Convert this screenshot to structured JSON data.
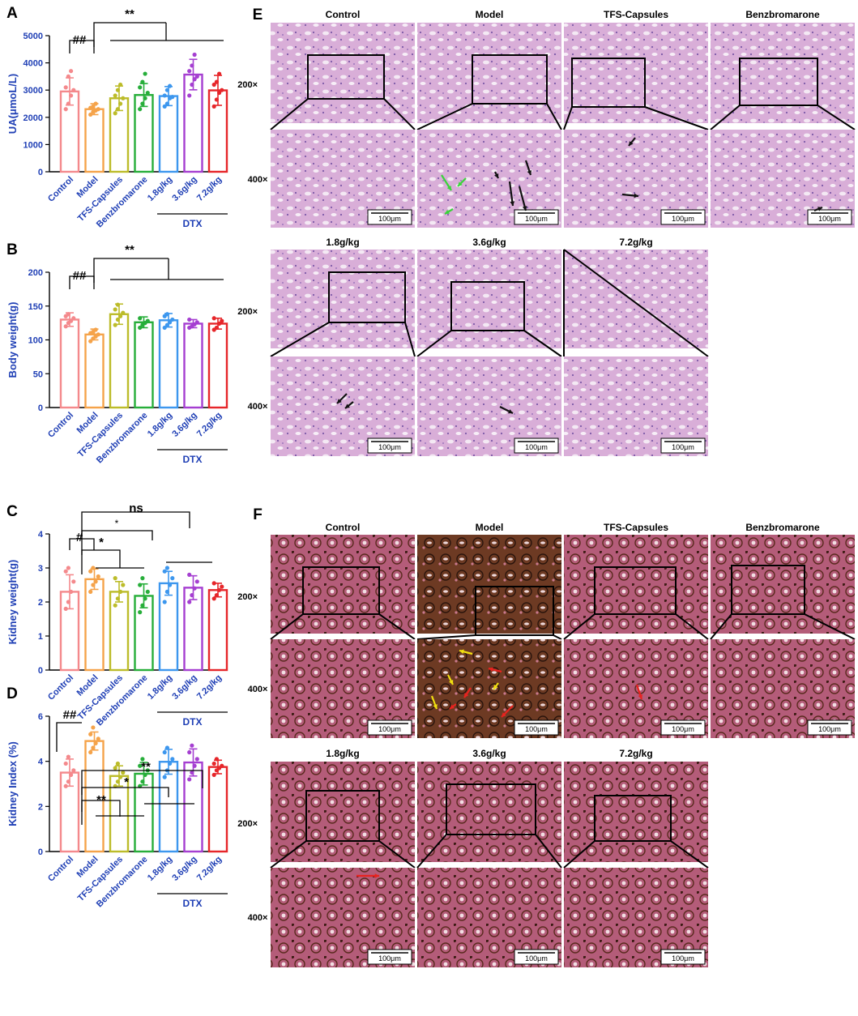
{
  "colors": {
    "groups": [
      "#f4898c",
      "#f5a34a",
      "#bcbc2a",
      "#27ae3a",
      "#3d97ee",
      "#a53fd1",
      "#e6262a"
    ],
    "axis_text": "#1f3fb5",
    "tissue_he": "#d7a8d6",
    "tissue_pasm": "#b25a78",
    "tissue_pasm_dark": "#6a3a22",
    "arrow_black": "#111111",
    "arrow_green": "#3ad43a",
    "arrow_yellow": "#f2e010",
    "arrow_red": "#e8231f"
  },
  "groups": [
    "Control",
    "Model",
    "TFS-Capsules",
    "Benzbromarone",
    "1.8g/kg",
    "3.6g/kg",
    "7.2g/kg"
  ],
  "dtx_label": "DTX",
  "chart_data": [
    {
      "panel": "A",
      "type": "bar",
      "ylabel": "UA(μmoL/L)",
      "ylim": [
        0,
        5000
      ],
      "yticks": [
        "0",
        "1000",
        "2000",
        "3000",
        "4000",
        "5000"
      ],
      "values": [
        2950,
        2300,
        2700,
        2820,
        2780,
        3570,
        2990
      ],
      "errors": [
        500,
        200,
        450,
        420,
        350,
        560,
        550
      ],
      "points": [
        [
          2300,
          2500,
          2800,
          3000,
          3100,
          3500,
          3700
        ],
        [
          2100,
          2200,
          2250,
          2300,
          2350,
          2400,
          2500
        ],
        [
          2150,
          2300,
          2500,
          2700,
          2800,
          3000,
          3200
        ],
        [
          2300,
          2500,
          2700,
          2900,
          3100,
          3300,
          3600
        ],
        [
          2400,
          2500,
          2700,
          2750,
          2800,
          3000,
          3150
        ],
        [
          2800,
          3200,
          3400,
          3500,
          3700,
          3900,
          4300
        ],
        [
          2400,
          2650,
          2900,
          3000,
          3200,
          3300,
          3600
        ]
      ],
      "annotations": [
        "##",
        "**"
      ]
    },
    {
      "panel": "B",
      "type": "bar",
      "ylabel": "Body weight(g)",
      "ylim": [
        0,
        200
      ],
      "yticks": [
        "0",
        "50",
        "100",
        "150",
        "200"
      ],
      "values": [
        130,
        108,
        138,
        126,
        129,
        124,
        124
      ],
      "errors": [
        10,
        8,
        15,
        8,
        10,
        6,
        8
      ],
      "points": [
        [
          120,
          125,
          128,
          132,
          135,
          138
        ],
        [
          98,
          102,
          105,
          108,
          110,
          112,
          115
        ],
        [
          122,
          130,
          135,
          140,
          145,
          152
        ],
        [
          118,
          122,
          125,
          128,
          132
        ],
        [
          118,
          122,
          126,
          130,
          135,
          138
        ],
        [
          118,
          120,
          123,
          126,
          130
        ],
        [
          115,
          118,
          124,
          128,
          132
        ]
      ],
      "annotations": [
        "##",
        "**"
      ]
    },
    {
      "panel": "C",
      "type": "bar",
      "ylabel": "Kidney weight(g)",
      "ylim": [
        0,
        4
      ],
      "yticks": [
        "0",
        "1",
        "2",
        "3",
        "4"
      ],
      "values": [
        2.3,
        2.67,
        2.3,
        2.18,
        2.55,
        2.42,
        2.35
      ],
      "errors": [
        0.5,
        0.3,
        0.3,
        0.35,
        0.35,
        0.35,
        0.2
      ],
      "points": [
        [
          1.8,
          2.0,
          2.3,
          2.6,
          2.9,
          3.0
        ],
        [
          2.3,
          2.5,
          2.6,
          2.75,
          2.9,
          3.0
        ],
        [
          1.9,
          2.1,
          2.3,
          2.5,
          2.7
        ],
        [
          1.7,
          1.9,
          2.1,
          2.3,
          2.5,
          2.7
        ],
        [
          2.0,
          2.3,
          2.5,
          2.7,
          2.9,
          3.0
        ],
        [
          2.0,
          2.2,
          2.4,
          2.6,
          2.8
        ],
        [
          2.1,
          2.2,
          2.35,
          2.45,
          2.55
        ]
      ],
      "annotations": [
        "#",
        "ns",
        "*",
        "*"
      ]
    },
    {
      "panel": "D",
      "type": "bar",
      "ylabel": "Kidney Index (%)",
      "ylim": [
        0,
        6
      ],
      "yticks": [
        "0",
        "2",
        "4",
        "6"
      ],
      "values": [
        3.5,
        4.9,
        3.35,
        3.45,
        3.98,
        3.95,
        3.75
      ],
      "errors": [
        0.6,
        0.4,
        0.45,
        0.5,
        0.55,
        0.6,
        0.3
      ],
      "points": [
        [
          2.9,
          3.1,
          3.4,
          3.6,
          3.9,
          4.2
        ],
        [
          4.4,
          4.6,
          4.8,
          5.0,
          5.2,
          5.5
        ],
        [
          2.9,
          3.1,
          3.3,
          3.5,
          3.7,
          3.9
        ],
        [
          2.9,
          3.1,
          3.4,
          3.6,
          3.8,
          4.1
        ],
        [
          3.3,
          3.6,
          3.9,
          4.1,
          4.4,
          4.6
        ],
        [
          3.2,
          3.5,
          3.8,
          4.1,
          4.4,
          4.7
        ],
        [
          3.4,
          3.6,
          3.7,
          3.8,
          3.9,
          4.1
        ]
      ],
      "annotations": [
        "##",
        "**",
        "*",
        "**"
      ]
    }
  ],
  "histology": {
    "E": {
      "letter": "E",
      "titles_top": [
        "Control",
        "Model",
        "TFS-Capsules",
        "Benzbromarone"
      ],
      "titles_bottom": [
        "1.8g/kg",
        "3.6g/kg",
        "7.2g/kg"
      ],
      "mag_200": "200×",
      "mag_400": "400×",
      "scale": "100μm"
    },
    "F": {
      "letter": "F",
      "titles_top": [
        "Control",
        "Model",
        "TFS-Capsules",
        "Benzbromarone"
      ],
      "titles_bottom": [
        "1.8g/kg",
        "3.6g/kg",
        "7.2g/kg"
      ],
      "mag_200": "200×",
      "mag_400": "400×",
      "scale": "100μm"
    }
  }
}
